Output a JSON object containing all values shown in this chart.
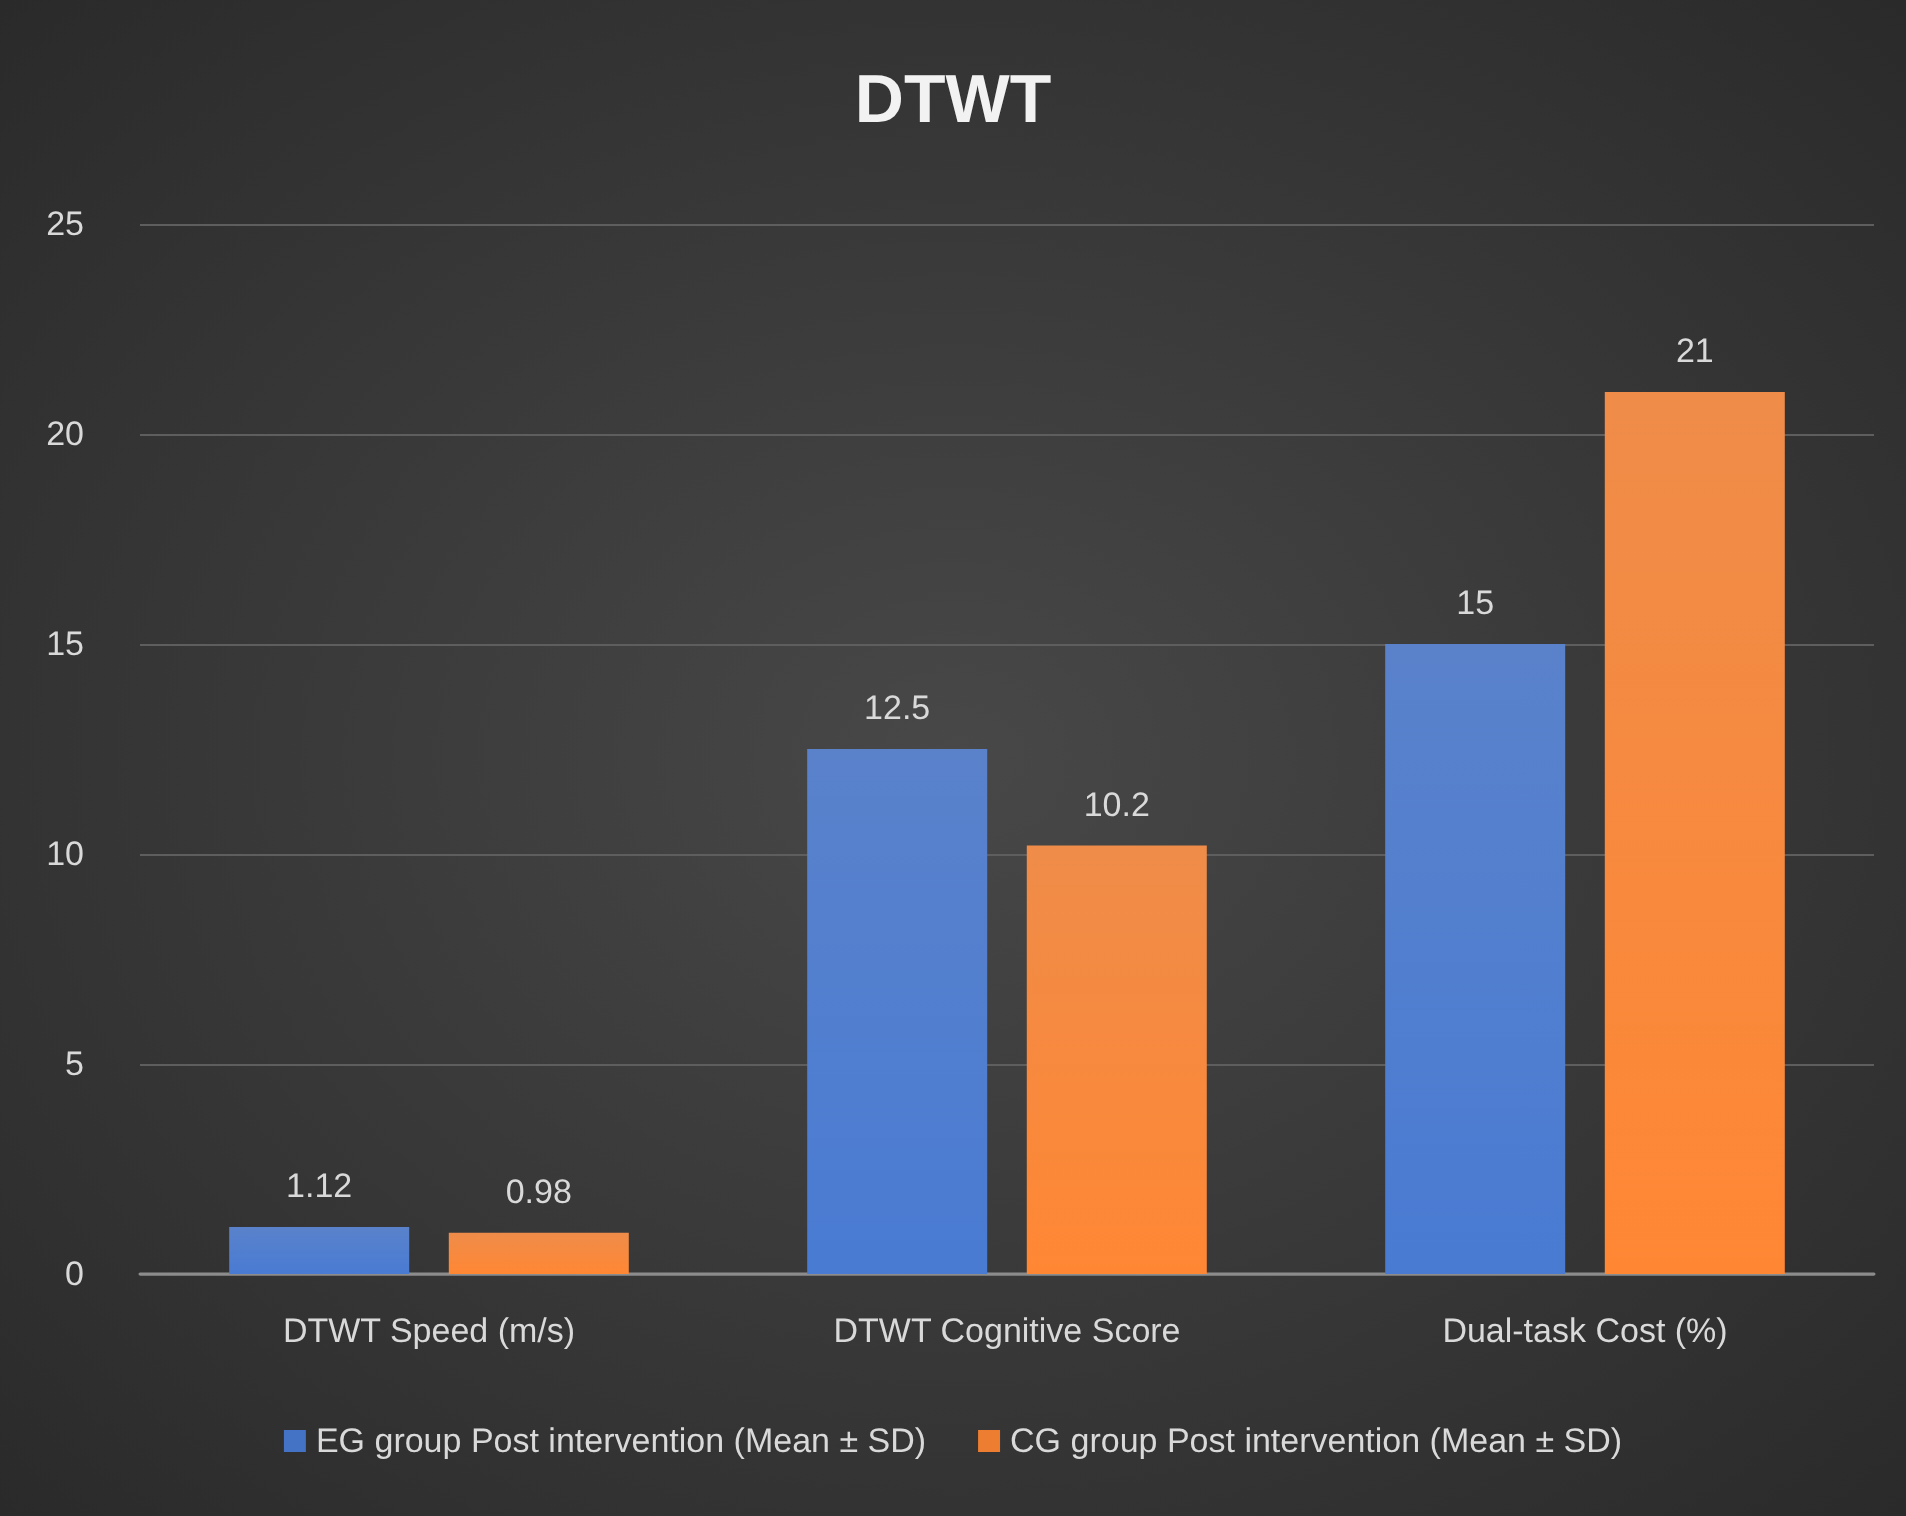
{
  "chart_data": {
    "type": "bar",
    "title": "DTWT",
    "categories": [
      "DTWT Speed (m/s)",
      "DTWT Cognitive Score",
      "Dual-task Cost (%)"
    ],
    "series": [
      {
        "name": "EG group Post intervention (Mean ± SD)",
        "color": "#4472c4",
        "values": [
          1.12,
          12.5,
          15
        ]
      },
      {
        "name": "CG group Post intervention (Mean ± SD)",
        "color": "#ed7d31",
        "values": [
          0.98,
          10.2,
          21
        ]
      }
    ],
    "ylim": [
      0,
      25
    ],
    "yticks": [
      0,
      5,
      10,
      15,
      20,
      25
    ],
    "grid": "y",
    "legend": "bottom",
    "data_labels": true
  }
}
